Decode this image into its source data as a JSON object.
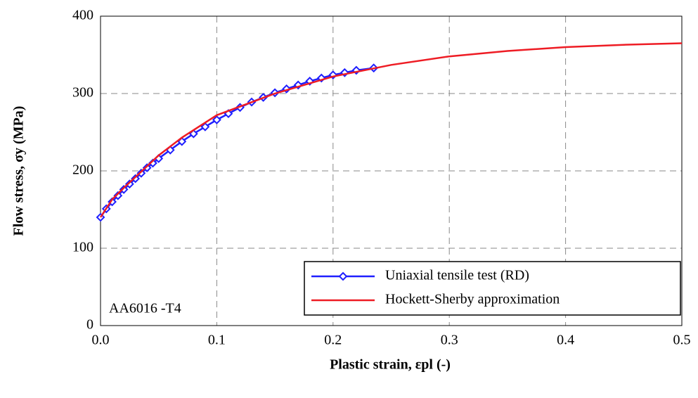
{
  "chart_data": {
    "type": "line",
    "x_label": "Plastic strain, εpl (-)",
    "y_label": "Flow stress, σy (MPa)",
    "annotation": "AA6016 -T4",
    "xlim": [
      0,
      0.5
    ],
    "ylim": [
      0,
      400
    ],
    "xticks": [
      {
        "value": 0,
        "label": "0.0"
      },
      0.1,
      0.2,
      0.3,
      0.4,
      0.5
    ],
    "yticks": [
      0,
      100,
      200,
      300,
      400
    ],
    "grid": true,
    "legend": "lower right",
    "series": [
      {
        "name": "Uniaxial tensile test (RD)",
        "color": "#1f1fff",
        "marker": "diamond",
        "x": [
          0,
          0.005,
          0.01,
          0.015,
          0.02,
          0.025,
          0.03,
          0.035,
          0.04,
          0.045,
          0.05,
          0.06,
          0.07,
          0.08,
          0.09,
          0.1,
          0.11,
          0.12,
          0.13,
          0.14,
          0.15,
          0.16,
          0.17,
          0.18,
          0.19,
          0.2,
          0.21,
          0.22,
          0.235
        ],
        "values": [
          140,
          151,
          160,
          168,
          176,
          183,
          190,
          197,
          204,
          210,
          216,
          227,
          238,
          248,
          257,
          266,
          274,
          282,
          289,
          295,
          301,
          306,
          311,
          316,
          320,
          324,
          327,
          330,
          333
        ]
      },
      {
        "name": "Hockett-Sherby approximation",
        "color": "#ee1c24",
        "x": [
          0,
          0.01,
          0.02,
          0.03,
          0.05,
          0.07,
          0.1,
          0.15,
          0.2,
          0.25,
          0.3,
          0.35,
          0.4,
          0.45,
          0.5
        ],
        "values": [
          140,
          163,
          178,
          192,
          220,
          243,
          272,
          300,
          322,
          337,
          348,
          355,
          360,
          363,
          365
        ]
      }
    ]
  }
}
